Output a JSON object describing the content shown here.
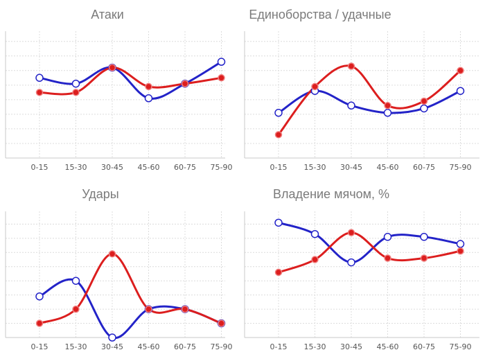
{
  "chart_data": [
    {
      "type": "line",
      "title": "Атаки",
      "categories": [
        "0-15",
        "15-30",
        "30-45",
        "45-60",
        "60-75",
        "75-90"
      ],
      "series": [
        {
          "color": "#2323c8",
          "values": [
            5.5,
            5.1,
            6.2,
            4.1,
            5.1,
            6.6
          ]
        },
        {
          "color": "#dc1e1e",
          "values": [
            4.5,
            4.5,
            6.2,
            4.9,
            5.1,
            5.5
          ]
        }
      ],
      "ylim": [
        0,
        8.7
      ],
      "ygrid": [
        1,
        2,
        3,
        4,
        5,
        6,
        7,
        8
      ],
      "grid": true
    },
    {
      "type": "line",
      "title": "Единоборства / удачные",
      "categories": [
        "0-15",
        "15-30",
        "30-45",
        "45-60",
        "60-75",
        "75-90"
      ],
      "series": [
        {
          "color": "#2323c8",
          "values": [
            3.1,
            4.6,
            3.6,
            3.1,
            3.4,
            4.6
          ]
        },
        {
          "color": "#dc1e1e",
          "values": [
            1.6,
            4.9,
            6.3,
            3.6,
            3.9,
            6.0
          ]
        }
      ],
      "ylim": [
        0,
        8.7
      ],
      "ygrid": [
        1,
        2,
        3,
        4,
        5,
        6,
        7,
        8
      ],
      "grid": true
    },
    {
      "type": "line",
      "title": "Удары",
      "categories": [
        "0-15",
        "15-30",
        "30-45",
        "45-60",
        "60-75",
        "75-90"
      ],
      "series": [
        {
          "color": "#2323c8",
          "values": [
            2.9,
            4.0,
            0,
            2.0,
            2.0,
            1.0
          ]
        },
        {
          "color": "#dc1e1e",
          "values": [
            1.0,
            2.0,
            5.9,
            2.0,
            2.0,
            1.0
          ]
        }
      ],
      "ylim": [
        0,
        8.9
      ],
      "ygrid": [
        1,
        2,
        3,
        4,
        5,
        6,
        7,
        8
      ],
      "grid": true
    },
    {
      "type": "line",
      "title": "Владение мячом, %",
      "categories": [
        "0-15",
        "15-30",
        "30-45",
        "45-60",
        "60-75",
        "75-90"
      ],
      "series": [
        {
          "color": "#2323c8",
          "values": [
            8.1,
            7.3,
            5.3,
            7.1,
            7.1,
            6.6
          ]
        },
        {
          "color": "#dc1e1e",
          "values": [
            4.6,
            5.5,
            7.4,
            5.6,
            5.6,
            6.1
          ]
        }
      ],
      "ylim": [
        0,
        8.9
      ],
      "ygrid": [
        1,
        2,
        3,
        4,
        5,
        6,
        7,
        8
      ],
      "grid": true
    }
  ]
}
